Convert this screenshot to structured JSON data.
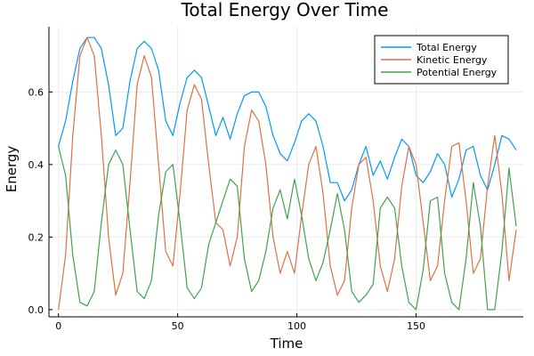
{
  "chart_data": {
    "type": "line",
    "title": "Total Energy Over Time",
    "xlabel": "Time",
    "ylabel": "Energy",
    "xlim": [
      -4,
      195
    ],
    "ylim": [
      -0.02,
      0.78
    ],
    "x_ticks": [
      0,
      50,
      100,
      150
    ],
    "y_ticks": [
      0.0,
      0.2,
      0.4,
      0.6
    ],
    "x_tick_labels": [
      "0",
      "50",
      "100",
      "150"
    ],
    "y_tick_labels": [
      "0.0",
      "0.2",
      "0.4",
      "0.6"
    ],
    "grid": true,
    "legend_position": "top-right",
    "series": [
      {
        "name": "Total Energy",
        "color": "#009af9",
        "x": [
          0,
          3,
          6,
          9,
          12,
          15,
          18,
          21,
          24,
          27,
          30,
          33,
          36,
          39,
          42,
          45,
          48,
          51,
          54,
          57,
          60,
          63,
          66,
          69,
          72,
          75,
          78,
          81,
          84,
          87,
          90,
          93,
          96,
          99,
          102,
          105,
          108,
          111,
          114,
          117,
          120,
          123,
          126,
          129,
          132,
          135,
          138,
          141,
          144,
          147,
          150,
          153,
          156,
          159,
          162,
          165,
          168,
          171,
          174,
          177,
          180,
          183,
          186,
          189,
          192
        ],
        "y": [
          0.45,
          0.52,
          0.63,
          0.72,
          0.75,
          0.75,
          0.72,
          0.62,
          0.48,
          0.5,
          0.63,
          0.72,
          0.74,
          0.72,
          0.66,
          0.52,
          0.48,
          0.57,
          0.64,
          0.66,
          0.64,
          0.56,
          0.48,
          0.53,
          0.47,
          0.54,
          0.59,
          0.6,
          0.6,
          0.56,
          0.48,
          0.43,
          0.41,
          0.46,
          0.52,
          0.54,
          0.52,
          0.45,
          0.35,
          0.35,
          0.3,
          0.33,
          0.4,
          0.45,
          0.37,
          0.41,
          0.36,
          0.42,
          0.47,
          0.45,
          0.37,
          0.35,
          0.38,
          0.43,
          0.4,
          0.31,
          0.36,
          0.44,
          0.45,
          0.37,
          0.33,
          0.4,
          0.48,
          0.47,
          0.44
        ]
      },
      {
        "name": "Kinetic Energy",
        "color": "#e26f46",
        "x": [
          0,
          3,
          6,
          9,
          12,
          15,
          18,
          21,
          24,
          27,
          30,
          33,
          36,
          39,
          42,
          45,
          48,
          51,
          54,
          57,
          60,
          63,
          66,
          69,
          72,
          75,
          78,
          81,
          84,
          87,
          90,
          93,
          96,
          99,
          102,
          105,
          108,
          111,
          114,
          117,
          120,
          123,
          126,
          129,
          132,
          135,
          138,
          141,
          144,
          147,
          150,
          153,
          156,
          159,
          162,
          165,
          168,
          171,
          174,
          177,
          180,
          183,
          186,
          189,
          192
        ],
        "y": [
          0.0,
          0.15,
          0.48,
          0.7,
          0.75,
          0.7,
          0.48,
          0.2,
          0.04,
          0.1,
          0.35,
          0.62,
          0.7,
          0.64,
          0.4,
          0.16,
          0.12,
          0.32,
          0.55,
          0.62,
          0.58,
          0.4,
          0.24,
          0.22,
          0.12,
          0.2,
          0.45,
          0.55,
          0.52,
          0.4,
          0.2,
          0.1,
          0.16,
          0.1,
          0.26,
          0.4,
          0.45,
          0.32,
          0.12,
          0.04,
          0.08,
          0.28,
          0.4,
          0.42,
          0.3,
          0.12,
          0.05,
          0.14,
          0.34,
          0.45,
          0.4,
          0.24,
          0.08,
          0.12,
          0.3,
          0.45,
          0.46,
          0.3,
          0.1,
          0.14,
          0.34,
          0.48,
          0.32,
          0.08,
          0.22
        ]
      },
      {
        "name": "Potential Energy",
        "color": "#3ea44e",
        "x": [
          0,
          3,
          6,
          9,
          12,
          15,
          18,
          21,
          24,
          27,
          30,
          33,
          36,
          39,
          42,
          45,
          48,
          51,
          54,
          57,
          60,
          63,
          66,
          69,
          72,
          75,
          78,
          81,
          84,
          87,
          90,
          93,
          96,
          99,
          102,
          105,
          108,
          111,
          114,
          117,
          120,
          123,
          126,
          129,
          132,
          135,
          138,
          141,
          144,
          147,
          150,
          153,
          156,
          159,
          162,
          165,
          168,
          171,
          174,
          177,
          180,
          183,
          186,
          189,
          192
        ],
        "y": [
          0.45,
          0.37,
          0.15,
          0.02,
          0.01,
          0.05,
          0.24,
          0.4,
          0.44,
          0.4,
          0.22,
          0.05,
          0.03,
          0.08,
          0.26,
          0.38,
          0.4,
          0.24,
          0.06,
          0.03,
          0.06,
          0.18,
          0.24,
          0.3,
          0.36,
          0.34,
          0.14,
          0.05,
          0.08,
          0.16,
          0.28,
          0.33,
          0.25,
          0.36,
          0.26,
          0.14,
          0.08,
          0.13,
          0.22,
          0.32,
          0.22,
          0.05,
          0.02,
          0.04,
          0.07,
          0.28,
          0.31,
          0.28,
          0.12,
          0.02,
          0.0,
          0.11,
          0.3,
          0.31,
          0.1,
          0.02,
          0.0,
          0.14,
          0.35,
          0.23,
          0.0,
          0.0,
          0.16,
          0.39,
          0.23
        ]
      }
    ]
  }
}
